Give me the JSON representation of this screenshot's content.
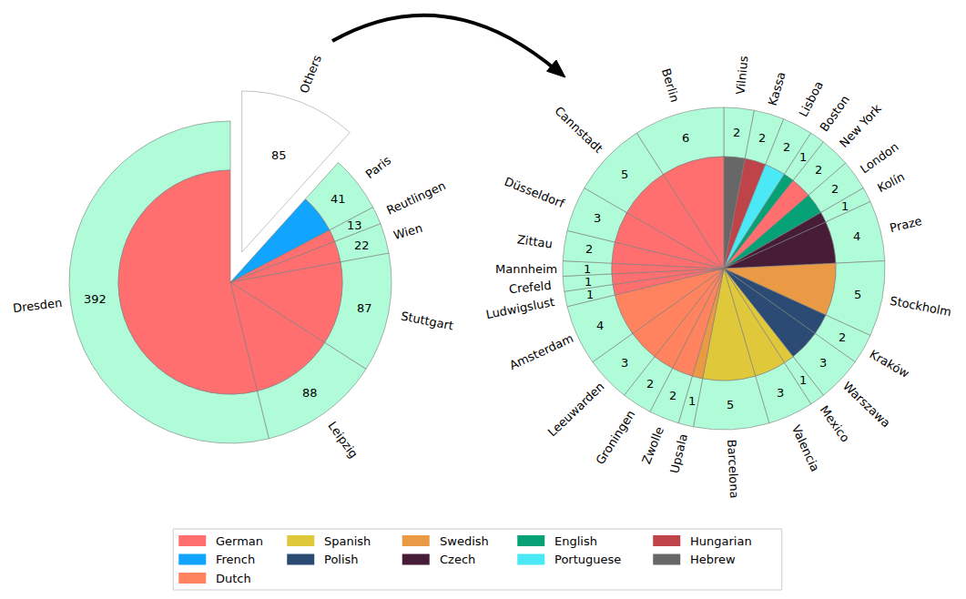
{
  "chart_data": {
    "type": "pie",
    "legend": "bottom",
    "data_labels": true,
    "color": "#b0fcd9",
    "series": [
      {
        "name": "German",
        "color": "#ff6f6f"
      },
      {
        "name": "French",
        "color": "#11a5ff"
      },
      {
        "name": "Dutch",
        "color": "#ff835e"
      },
      {
        "name": "Spanish",
        "color": "#dfc93b"
      },
      {
        "name": "Polish",
        "color": "#2b4b74"
      },
      {
        "name": "Swedish",
        "color": "#ea9a45"
      },
      {
        "name": "Czech",
        "color": "#471c36"
      },
      {
        "name": "English",
        "color": "#07a176"
      },
      {
        "name": "Portuguese",
        "color": "#4ae9f5"
      },
      {
        "name": "Hungarian",
        "color": "#bf444a"
      },
      {
        "name": "Hebrew",
        "color": "#676767"
      }
    ],
    "pies": [
      {
        "categories": [
          "Others",
          "Paris",
          "Reutlingen",
          "Wien",
          "Stuttgart",
          "Leipzig",
          "Dresden"
        ],
        "values": [
          85,
          41,
          13,
          22,
          87,
          88,
          392
        ],
        "languages": [
          null,
          "French",
          "German",
          "German",
          "German",
          "German",
          "German"
        ]
      },
      {
        "categories": [
          "Vilnius",
          "Kassa",
          "Lisboa",
          "Boston",
          "New York",
          "London",
          "Kolín",
          "Praze",
          "Stockholm",
          "Kraków",
          "Warszawa",
          "Mexico",
          "Valencia",
          "Barcelona",
          "Upsala",
          "Zwolle",
          "Groningen",
          "Leeuwarden",
          "Amsterdam",
          "Ludwigslust",
          "Crefeld",
          "Mannheim",
          "Zittau",
          "Düsseldorf",
          "Cannstadt",
          "Berlin"
        ],
        "values": [
          2,
          2,
          2,
          1,
          2,
          2,
          1,
          4,
          5,
          2,
          3,
          1,
          3,
          5,
          1,
          2,
          2,
          3,
          4,
          1,
          1,
          1,
          2,
          3,
          5,
          6
        ],
        "languages": [
          "Hebrew",
          "Hungarian",
          "Portuguese",
          "English",
          "German",
          "English",
          "Czech",
          "Czech",
          "Swedish",
          "Polish",
          "Polish",
          "Spanish",
          "Spanish",
          "Spanish",
          "Swedish",
          "Dutch",
          "Dutch",
          "Dutch",
          "Dutch",
          "German",
          "German",
          "German",
          "German",
          "German",
          "German",
          "German"
        ]
      }
    ]
  }
}
